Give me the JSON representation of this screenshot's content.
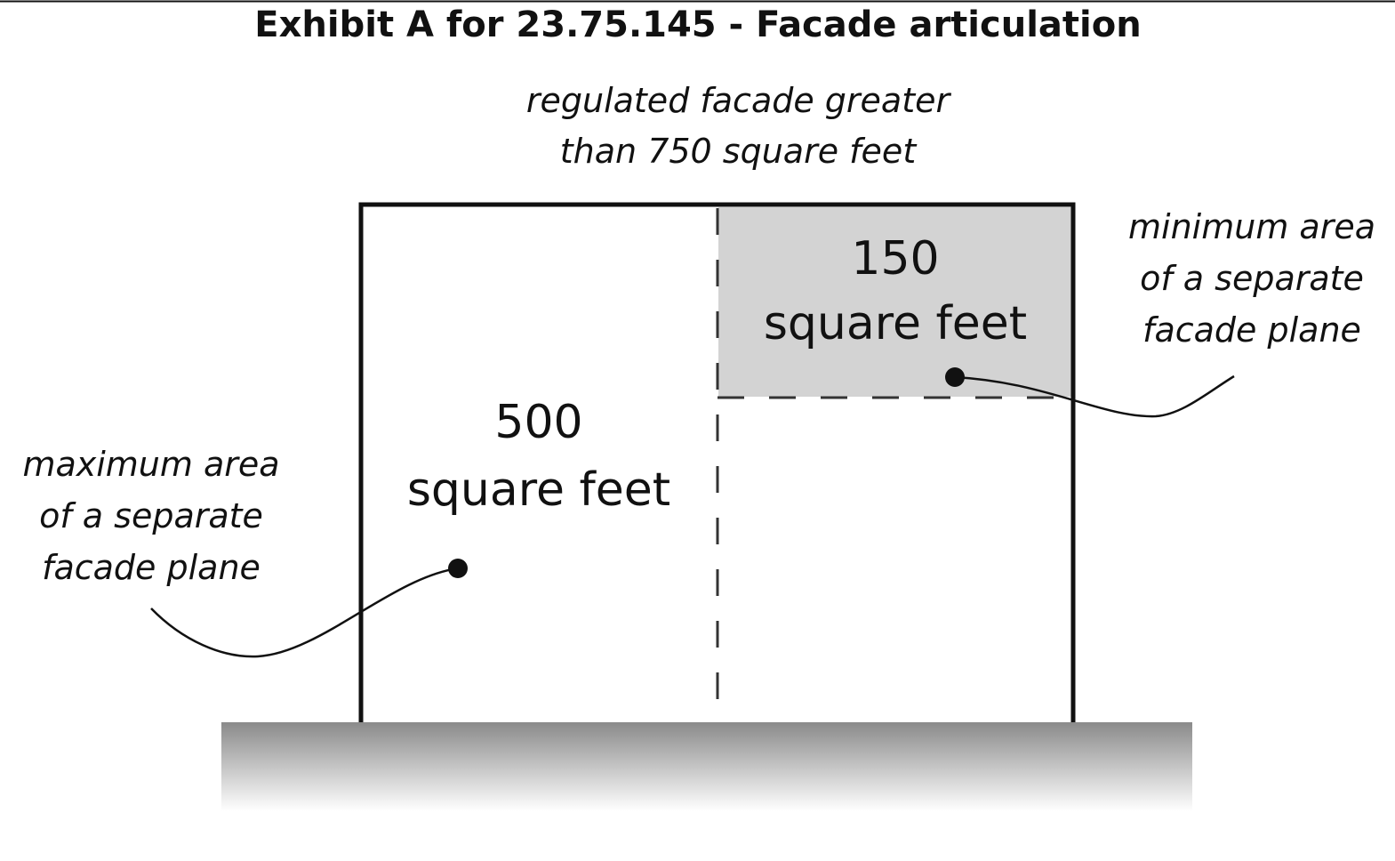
{
  "title": "Exhibit A for 23.75.145 - Facade articulation",
  "facade_label": {
    "line1": "regulated facade greater",
    "line2": "than 750 square feet"
  },
  "small_area": {
    "value": "150",
    "unit": "square feet"
  },
  "large_area": {
    "value": "500",
    "unit": "square feet"
  },
  "min_callout": {
    "line1": "minimum area",
    "line2": "of a separate",
    "line3": "facade plane"
  },
  "max_callout": {
    "line1": "maximum area",
    "line2": "of a separate",
    "line3": "facade plane"
  },
  "colors": {
    "outline": "#111111",
    "shaded_plane": "#d3d3d3",
    "ground_top": "#8a8a8a",
    "ground_bottom": "#ffffff"
  }
}
